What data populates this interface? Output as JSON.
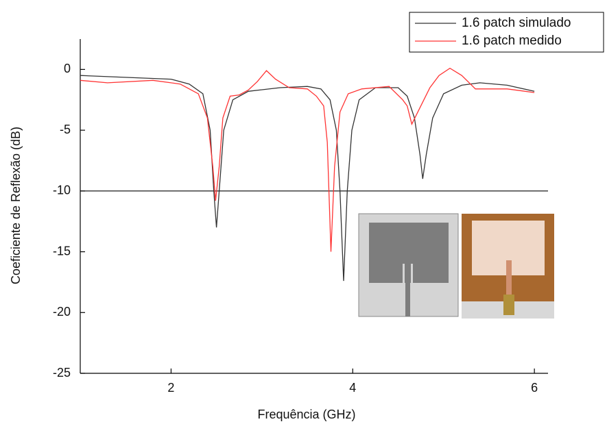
{
  "chart_data": {
    "type": "line",
    "xlabel": "Frequência (GHz)",
    "ylabel": "Coeficiente de Reflexão (dB)",
    "xlim": [
      1,
      6.15
    ],
    "xticks": [
      2,
      4,
      6
    ],
    "ylim": [
      -25,
      2.5
    ],
    "yticks": [
      0,
      -5,
      -10,
      -15,
      -20,
      -25
    ],
    "hline": -10,
    "legend": "top-right",
    "series": [
      {
        "name": "1.6 patch simulado",
        "color": "#333333",
        "x": [
          1,
          2,
          2.2,
          2.35,
          2.43,
          2.47,
          2.5,
          2.53,
          2.58,
          2.68,
          2.85,
          3.2,
          3.5,
          3.65,
          3.75,
          3.82,
          3.86,
          3.9,
          3.94,
          3.99,
          4.07,
          4.25,
          4.5,
          4.6,
          4.68,
          4.74,
          4.77,
          4.81,
          4.88,
          5.0,
          5.2,
          5.4,
          5.7,
          6.0
        ],
        "values": [
          -0.5,
          -0.8,
          -1.2,
          -2,
          -5,
          -10,
          -13,
          -10,
          -5,
          -2.5,
          -1.8,
          -1.5,
          -1.4,
          -1.6,
          -2.5,
          -5,
          -10,
          -17.4,
          -10,
          -5,
          -2.5,
          -1.5,
          -1.5,
          -2.2,
          -4,
          -7,
          -9,
          -7,
          -4,
          -2,
          -1.3,
          -1.1,
          -1.3,
          -1.8
        ]
      },
      {
        "name": "1.6 patch medido",
        "color": "#ff3333",
        "x": [
          1,
          1.3,
          1.8,
          2.1,
          2.3,
          2.4,
          2.46,
          2.49,
          2.53,
          2.57,
          2.65,
          2.75,
          2.85,
          2.95,
          3.05,
          3.15,
          3.3,
          3.5,
          3.6,
          3.68,
          3.72,
          3.76,
          3.8,
          3.86,
          3.95,
          4.1,
          4.4,
          4.55,
          4.6,
          4.65,
          4.75,
          4.85,
          4.95,
          5.07,
          5.2,
          5.35,
          5.7,
          6.0
        ],
        "values": [
          -0.9,
          -1.1,
          -0.9,
          -1.2,
          -2,
          -4,
          -8,
          -10.8,
          -8,
          -4,
          -2.2,
          -2.1,
          -1.7,
          -1,
          -0.1,
          -0.8,
          -1.5,
          -1.6,
          -2.2,
          -3,
          -6,
          -15,
          -8,
          -3.5,
          -2,
          -1.6,
          -1.4,
          -2.5,
          -3,
          -4.5,
          -3,
          -1.5,
          -0.5,
          0.1,
          -0.5,
          -1.6,
          -1.6,
          -1.9
        ]
      }
    ]
  }
}
